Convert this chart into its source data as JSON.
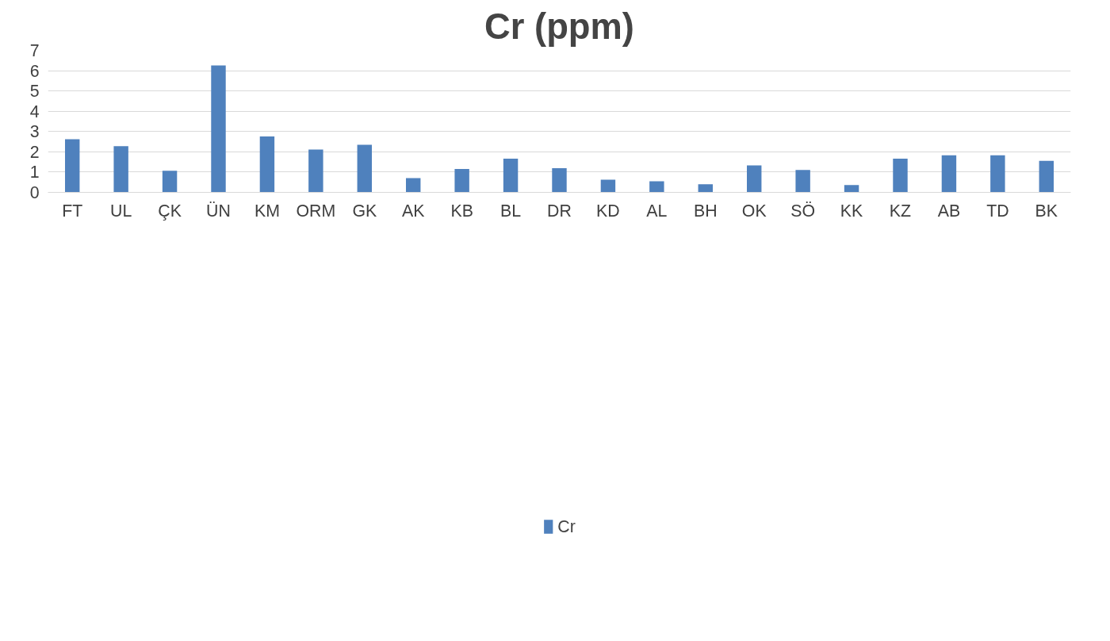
{
  "chart_data": {
    "type": "bar",
    "title": "Cr (ppm)",
    "categories": [
      "FT",
      "UL",
      "ÇK",
      "ÜN",
      "KM",
      "ORM",
      "GK",
      "AK",
      "KB",
      "BL",
      "DR",
      "KD",
      "AL",
      "BH",
      "OK",
      "SÖ",
      "KK",
      "KZ",
      "AB",
      "TD",
      "BK"
    ],
    "series": [
      {
        "name": "Cr",
        "color": "#4f81bd",
        "values": [
          2.62,
          2.28,
          1.07,
          6.26,
          2.76,
          2.11,
          2.35,
          0.7,
          1.15,
          1.66,
          1.19,
          0.63,
          0.55,
          0.4,
          1.33,
          1.1,
          0.36,
          1.66,
          1.83,
          1.83,
          1.55
        ]
      }
    ],
    "ylim": [
      0,
      7
    ],
    "yticks": [
      0,
      1,
      2,
      3,
      4,
      5,
      6,
      7
    ],
    "grid": "y",
    "legend": "bottom"
  }
}
